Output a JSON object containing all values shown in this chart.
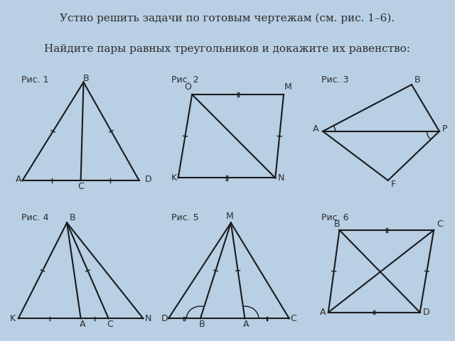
{
  "bg_color": "#b8cfe4",
  "panel_color": "#ffffff",
  "title_line1": "Устно решить задачи по готовым чертежам (см. рис. 1–6).",
  "title_line2": "Найдите пары равных треугольников и докажите их равенство:",
  "fig_labels": [
    "Рис. 1",
    "Рис. 2",
    "Рис. 3",
    "Рис. 4",
    "Рис. 5",
    "Рис. 6"
  ],
  "text_color": "#2c2c2c",
  "line_color": "#1a1a1a",
  "title_fontsize": 11,
  "label_fontsize": 9
}
